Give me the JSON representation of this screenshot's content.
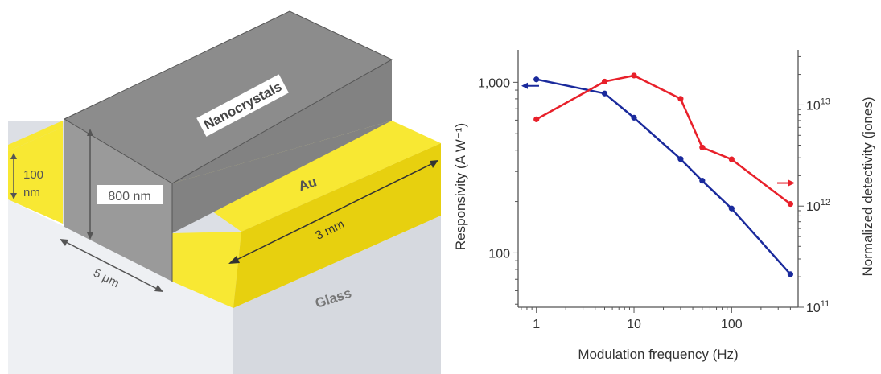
{
  "device": {
    "nanocrystals_label": "Nanocrystals",
    "au_label": "Au",
    "glass_label": "Glass",
    "thickness_label_line1": "100",
    "thickness_label_line2": "nm",
    "height_label": "800 nm",
    "length_label": "3 mm",
    "gap_label": "5 μm",
    "colors": {
      "gold": "#f8e833",
      "gold_side": "#e7d00f",
      "gray_top": "#8c8c8c",
      "gray_front": "#9a9a9a",
      "gray_side": "#828282",
      "glass_top": "#dcdfe5",
      "glass_front": "#eef0f3",
      "glass_side": "#d6d9df"
    }
  },
  "chart_data": {
    "type": "line",
    "xlabel": "Modulation frequency (Hz)",
    "ylabel_left": "Responsivity (A W⁻¹)",
    "ylabel_right": "Normalized detectivity (jones)",
    "x_scale": "log",
    "y_left_scale": "log",
    "y_right_scale": "log",
    "xlim": [
      0.65,
      480
    ],
    "ylim_left": [
      48,
      1550
    ],
    "ylim_right": [
      100000000000,
      35000000000000
    ],
    "x_ticks": [
      {
        "value": 1,
        "label": "1"
      },
      {
        "value": 10,
        "label": "10"
      },
      {
        "value": 100,
        "label": "100"
      }
    ],
    "y_left_ticks": [
      {
        "value": 100,
        "label": "100"
      },
      {
        "value": 1000,
        "label": "1,000"
      }
    ],
    "y_right_ticks": [
      {
        "value": 100000000000,
        "base": "10",
        "exp": "11"
      },
      {
        "value": 1000000000000,
        "base": "10",
        "exp": "12"
      },
      {
        "value": 10000000000000,
        "base": "10",
        "exp": "13"
      }
    ],
    "grid": false,
    "series": [
      {
        "axis": "left",
        "color": "#1a2a9c",
        "x": [
          1,
          5,
          10,
          30,
          50,
          100,
          400
        ],
        "y": [
          1040,
          860,
          620,
          355,
          265,
          182,
          75
        ]
      },
      {
        "axis": "right",
        "color": "#e8202a",
        "x": [
          1,
          5,
          10,
          30,
          50,
          100,
          400
        ],
        "y": [
          7200000000000,
          17000000000000,
          19500000000000,
          11500000000000,
          3800000000000,
          2900000000000,
          1050000000000
        ]
      }
    ],
    "arrows": [
      {
        "series": 0,
        "direction": "left"
      },
      {
        "series": 1,
        "direction": "right"
      }
    ]
  }
}
